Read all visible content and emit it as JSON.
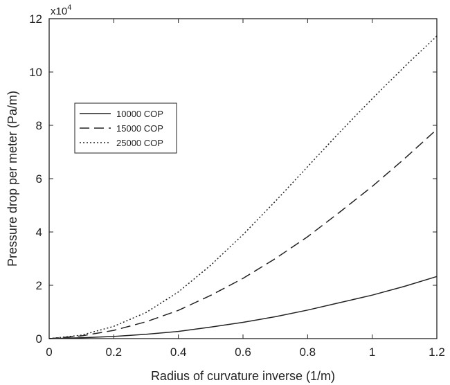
{
  "chart_data": {
    "type": "line",
    "title": "",
    "xlabel": "Radius of curvature inverse (1/m)",
    "ylabel": "Pressure drop per meter (Pa/m)",
    "y_multiplier_base": "x10",
    "y_multiplier_exponent": "4",
    "xlim": [
      0,
      1.2
    ],
    "ylim": [
      0,
      12
    ],
    "xticks": [
      0,
      0.2,
      0.4,
      0.6,
      0.8,
      1,
      1.2
    ],
    "xtick_labels": [
      "0",
      "0.2",
      "0.4",
      "0.6",
      "0.8",
      "1",
      "1.2"
    ],
    "yticks": [
      0,
      2,
      4,
      6,
      8,
      10,
      12
    ],
    "ytick_labels": [
      "0",
      "2",
      "4",
      "6",
      "8",
      "10",
      "12"
    ],
    "grid": false,
    "legend_position": "upper-left",
    "x": [
      0,
      0.1,
      0.2,
      0.3,
      0.4,
      0.5,
      0.6,
      0.7,
      0.8,
      0.9,
      1.0,
      1.1,
      1.2
    ],
    "series": [
      {
        "name": "10000 COP",
        "line_style": "solid",
        "color": "#222222",
        "values": [
          0,
          0.03,
          0.08,
          0.16,
          0.27,
          0.43,
          0.61,
          0.82,
          1.07,
          1.35,
          1.63,
          1.96,
          2.33
        ]
      },
      {
        "name": "15000 COP",
        "line_style": "dashed",
        "color": "#222222",
        "values": [
          0,
          0.1,
          0.31,
          0.63,
          1.06,
          1.62,
          2.26,
          3.0,
          3.82,
          4.75,
          5.71,
          6.75,
          7.85
        ]
      },
      {
        "name": "25000 COP",
        "line_style": "dotted",
        "color": "#222222",
        "values": [
          0,
          0.13,
          0.46,
          0.98,
          1.75,
          2.75,
          3.9,
          5.15,
          6.45,
          7.75,
          9.0,
          10.2,
          11.35
        ]
      }
    ]
  }
}
